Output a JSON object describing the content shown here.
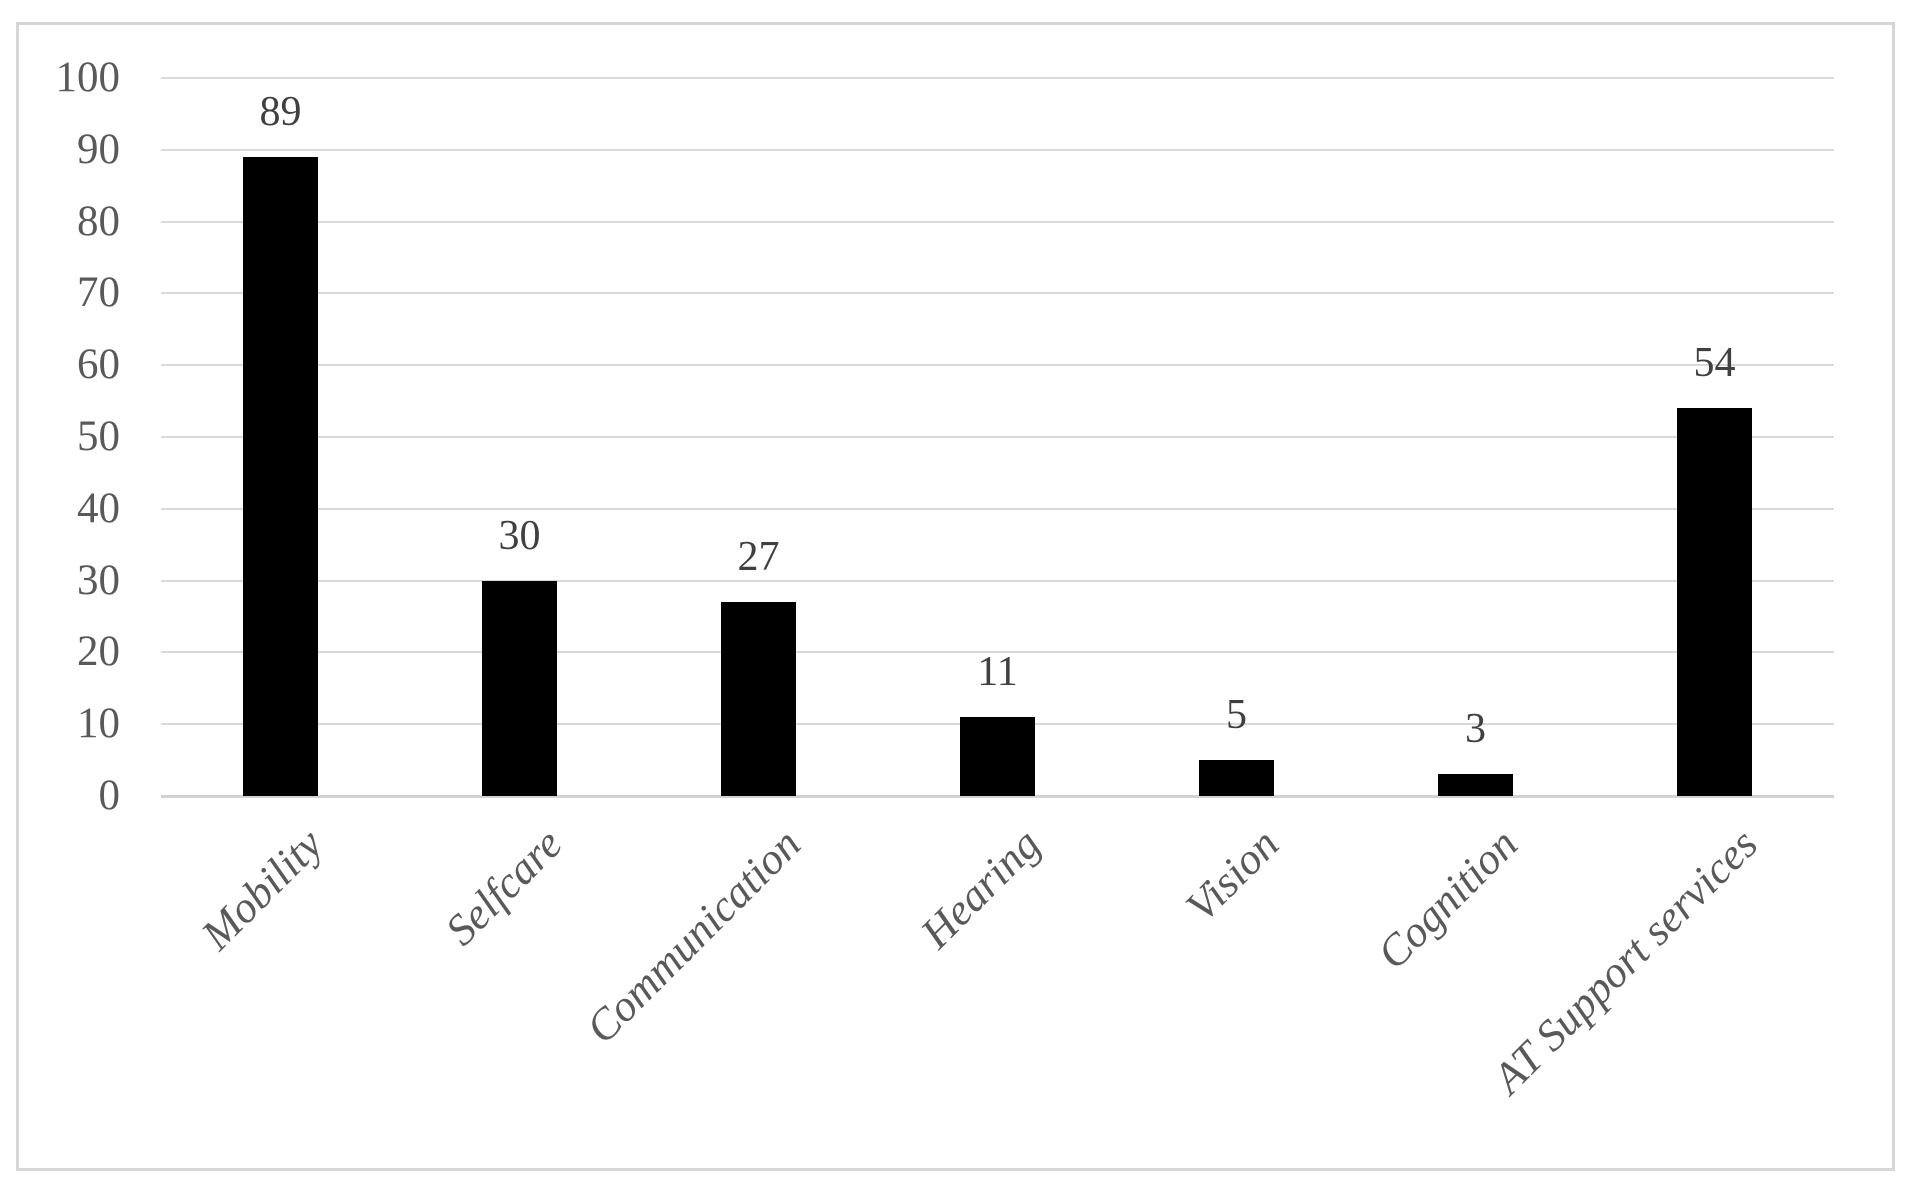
{
  "figure": {
    "kind": "column chart figure",
    "title": "",
    "background_color": "#FFFFFF",
    "border_color": "#D6D6D6"
  },
  "chart_data": {
    "type": "bar",
    "categories": [
      "Mobility",
      "Selfcare",
      "Communication",
      "Hearing",
      "Vision",
      "Cognition",
      "AT Support services"
    ],
    "values": [
      89,
      30,
      27,
      11,
      5,
      3,
      54
    ],
    "data_labels": [
      "89",
      "30",
      "27",
      "11",
      "5",
      "3",
      "54"
    ],
    "title": "",
    "xlabel": "",
    "ylabel": "",
    "ylim": [
      0,
      100
    ],
    "yticks": [
      0,
      10,
      20,
      30,
      40,
      50,
      60,
      70,
      80,
      90,
      100
    ],
    "ytick_labels": [
      "0",
      "10",
      "20",
      "30",
      "40",
      "50",
      "60",
      "70",
      "80",
      "90",
      "100"
    ],
    "grid": "horizontal gridlines on",
    "legend_position": "none",
    "bar_color": "#000000",
    "gridline_color": "#D9D9D9",
    "tick_label_color": "#595959",
    "data_label_color": "#404040",
    "data_label_position": "outside end, above bar",
    "category_label_style": "italic, rotated 45 degrees"
  }
}
